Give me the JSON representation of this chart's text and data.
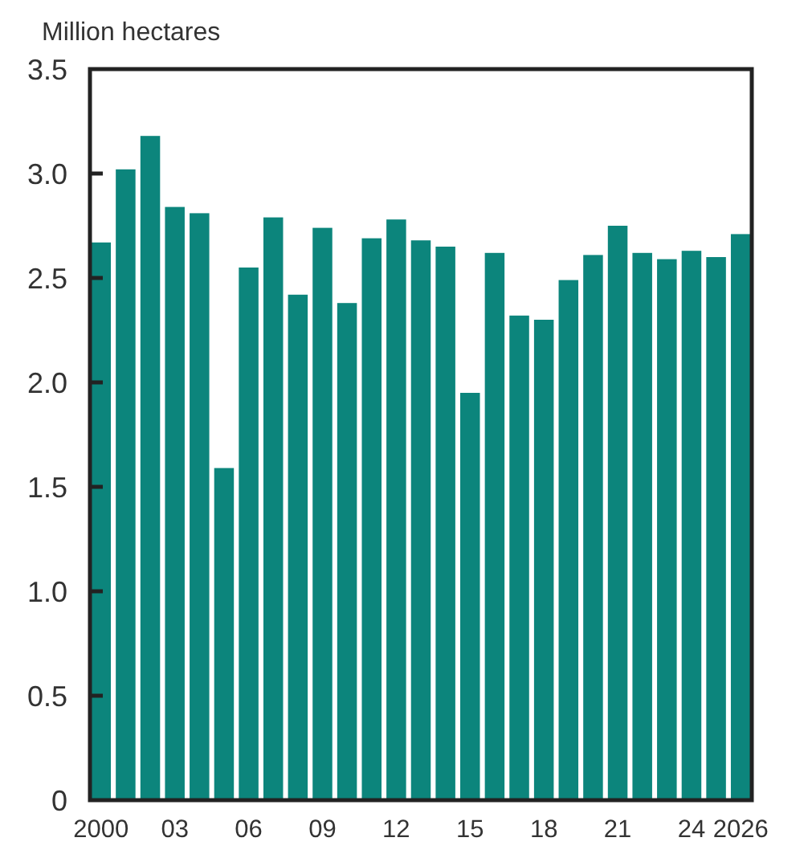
{
  "chart_data": {
    "type": "bar",
    "ylabel": "Million hectares",
    "categories": [
      "2000",
      null,
      null,
      "03",
      null,
      null,
      "06",
      null,
      null,
      "09",
      null,
      null,
      "12",
      null,
      null,
      "15",
      null,
      null,
      "18",
      null,
      null,
      "21",
      null,
      null,
      "24",
      null,
      "2026"
    ],
    "values": [
      2.67,
      3.02,
      3.18,
      2.84,
      2.81,
      1.59,
      2.55,
      2.79,
      2.42,
      2.74,
      2.38,
      2.69,
      2.78,
      2.68,
      2.65,
      1.95,
      2.62,
      2.32,
      2.3,
      2.49,
      2.61,
      2.75,
      2.62,
      2.59,
      2.63,
      2.6,
      2.71
    ],
    "color": "#0c857c",
    "ylim": [
      0,
      3.5
    ],
    "yticks": [
      {
        "value": 0,
        "label": "0"
      },
      0.5,
      {
        "value": 1,
        "label": "1.0"
      },
      1.5,
      {
        "value": 2,
        "label": "2.0"
      },
      2.5,
      {
        "value": 3,
        "label": "3.0"
      },
      3.5
    ],
    "grid": false
  }
}
